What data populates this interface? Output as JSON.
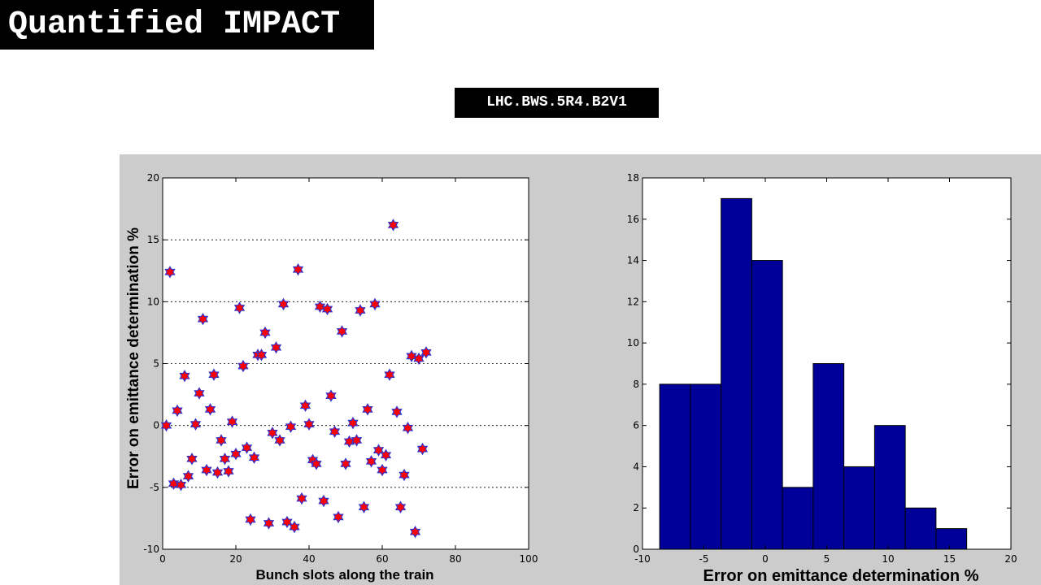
{
  "slide": {
    "title": "Quantified IMPACT",
    "device": "LHC.BWS.5R4.B2V1"
  },
  "colors": {
    "marker_fill": "#ff0000",
    "marker_edge": "#3333cc",
    "bar_fill": "#000099",
    "panel": "#cccccc"
  },
  "chart_data": [
    {
      "type": "scatter",
      "xlabel": "Bunch slots along the train",
      "ylabel": "Error on emittance determination %",
      "xlim": [
        0,
        100
      ],
      "ylim": [
        -10,
        20
      ],
      "xticks": [
        0,
        20,
        40,
        60,
        80,
        100
      ],
      "yticks": [
        -10,
        -5,
        0,
        5,
        10,
        15,
        20
      ],
      "grid": "horizontal-dotted",
      "marker": "hexagram",
      "x": [
        1,
        2,
        3,
        4,
        5,
        6,
        7,
        8,
        9,
        10,
        11,
        12,
        13,
        14,
        15,
        16,
        17,
        18,
        19,
        20,
        21,
        22,
        23,
        24,
        25,
        26,
        27,
        28,
        29,
        30,
        31,
        32,
        33,
        34,
        35,
        36,
        37,
        38,
        39,
        40,
        41,
        42,
        43,
        44,
        45,
        46,
        47,
        48,
        49,
        50,
        51,
        52,
        53,
        54,
        55,
        56,
        57,
        58,
        59,
        60,
        61,
        62,
        63,
        64,
        65,
        66,
        67,
        68,
        69,
        70,
        71,
        72
      ],
      "y": [
        0.0,
        12.4,
        -4.7,
        1.2,
        -4.8,
        4.0,
        -4.1,
        -2.7,
        0.1,
        2.6,
        8.6,
        -3.6,
        1.3,
        4.1,
        -3.8,
        -1.2,
        -2.7,
        -3.7,
        0.3,
        -2.3,
        9.5,
        4.8,
        -1.8,
        -7.6,
        -2.6,
        5.7,
        5.7,
        7.5,
        -7.9,
        -0.6,
        6.3,
        -1.2,
        9.8,
        -7.8,
        -0.1,
        -8.2,
        12.6,
        -5.9,
        1.6,
        0.1,
        -2.8,
        -3.1,
        9.6,
        -6.1,
        9.4,
        2.4,
        -0.5,
        -7.4,
        7.6,
        -3.1,
        -1.3,
        0.2,
        -1.2,
        9.3,
        -6.6,
        1.3,
        -2.9,
        9.8,
        -2.0,
        -3.6,
        -2.4,
        4.1,
        16.2,
        1.1,
        -6.6,
        -4.0,
        -0.2,
        5.6,
        -8.6,
        5.4,
        -1.9,
        5.9
      ]
    },
    {
      "type": "bar",
      "subtype": "histogram",
      "xlabel": "Error on emittance determination %",
      "ylabel": "",
      "xlim": [
        -10,
        20
      ],
      "ylim": [
        0,
        18
      ],
      "xticks": [
        -10,
        -5,
        0,
        5,
        10,
        15,
        20
      ],
      "yticks": [
        0,
        2,
        4,
        6,
        8,
        10,
        12,
        14,
        16,
        18
      ],
      "grid": "off",
      "bin_edges": [
        -8.6,
        -6.1,
        -3.6,
        -1.1,
        1.4,
        3.9,
        6.4,
        8.9,
        11.4,
        13.9,
        16.4
      ],
      "values": [
        8,
        8,
        17,
        14,
        3,
        9,
        4,
        6,
        2,
        1
      ]
    }
  ]
}
